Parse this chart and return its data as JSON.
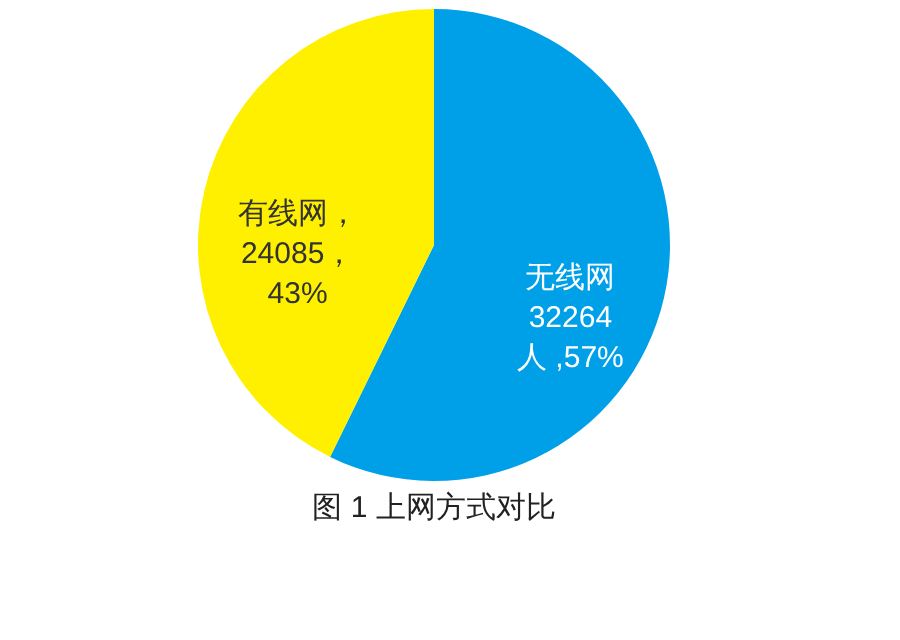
{
  "chart_data": {
    "type": "pie",
    "title": "图 1 上网方式对比",
    "categories": [
      "无线网",
      "有线网"
    ],
    "values": [
      32264,
      24085
    ],
    "colors": [
      "#00a0e9",
      "#fff000"
    ],
    "value_labels": [
      "\n32264\n人 ,57%",
      "，\n24085，\n43%"
    ],
    "legend": false
  }
}
